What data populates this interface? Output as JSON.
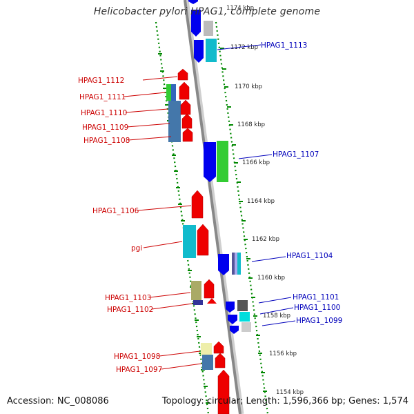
{
  "title": "Helicobacter pylori HPAG1, complete genome",
  "footer": {
    "accession": "Accession: NC_008086",
    "topology": "Topology: circular; Length: 1,596,366 bp; Genes: 1,574"
  },
  "colors": {
    "forward_label": "#cc0000",
    "reverse_label": "#0000bb",
    "backbone": "#888888",
    "tick": "#008800"
  },
  "kbp_ticks": [
    "1174 kbp",
    "1172 kbp",
    "1170 kbp",
    "1168 kbp",
    "1166 kbp",
    "1164 kbp",
    "1162 kbp",
    "1160 kbp",
    "1158 kbp",
    "1156 kbp",
    "1154 kbp"
  ],
  "forward_genes": [
    "HPAG1_1112",
    "HPAG1_1111",
    "HPAG1_1110",
    "HPAG1_1109",
    "HPAG1_1108",
    "HPAG1_1106",
    "pgi",
    "HPAG1_1103",
    "HPAG1_1102",
    "HPAG1_1098",
    "HPAG1_1097"
  ],
  "reverse_genes": [
    "HPAG1_1113",
    "HPAG1_1107",
    "HPAG1_1104",
    "HPAG1_1101",
    "HPAG1_1100",
    "HPAG1_1099"
  ]
}
